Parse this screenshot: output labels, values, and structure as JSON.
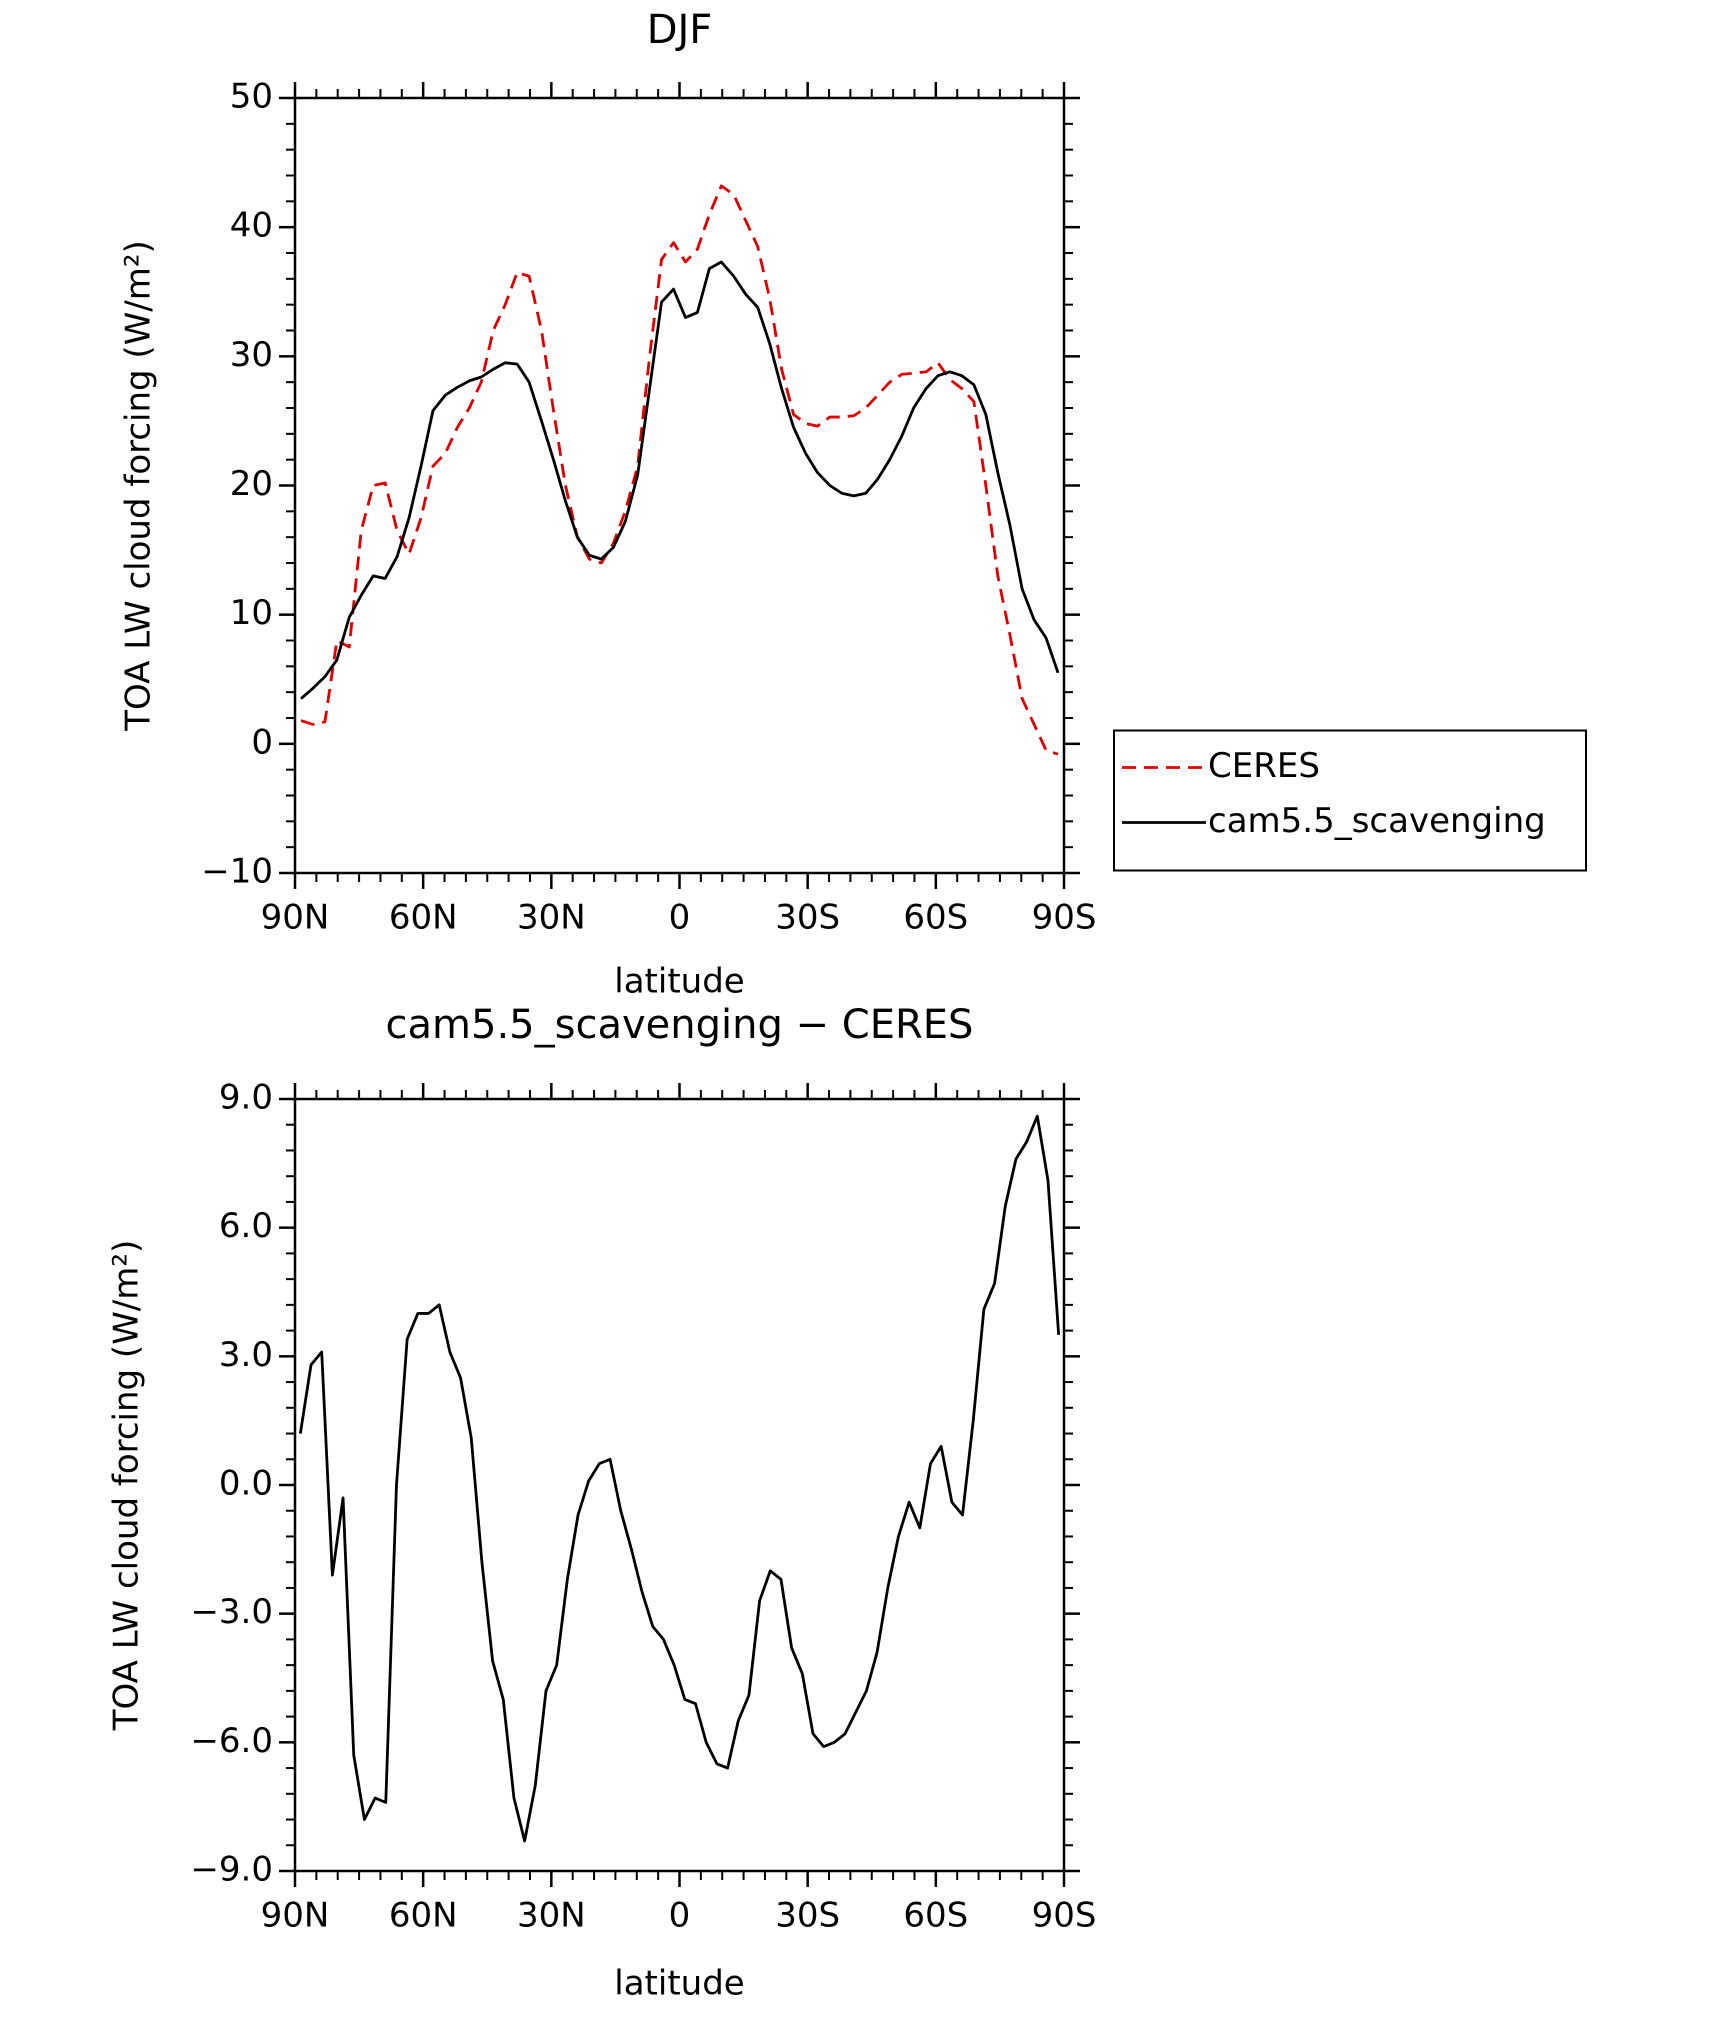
{
  "chart_data": [
    {
      "type": "line",
      "title": "DJF",
      "xlabel": "latitude",
      "ylabel": "TOA LW cloud forcing (W/m²)",
      "x": [
        88.6,
        85.8,
        83.0,
        80.2,
        77.3,
        74.5,
        71.7,
        68.9,
        66.1,
        63.3,
        60.5,
        57.7,
        54.8,
        52.0,
        49.2,
        46.4,
        43.6,
        40.8,
        38.0,
        35.2,
        32.3,
        29.5,
        26.7,
        23.9,
        21.1,
        18.3,
        15.5,
        12.7,
        9.8,
        7.0,
        4.2,
        1.4,
        -1.4,
        -4.2,
        -7.0,
        -9.8,
        -12.7,
        -15.5,
        -18.3,
        -21.1,
        -23.9,
        -26.7,
        -29.5,
        -32.3,
        -35.2,
        -38.0,
        -40.8,
        -43.6,
        -46.4,
        -49.2,
        -52.0,
        -54.8,
        -57.7,
        -60.5,
        -63.3,
        -66.1,
        -68.9,
        -71.7,
        -74.5,
        -77.3,
        -80.2,
        -83.0,
        -85.8,
        -88.6
      ],
      "series": [
        {
          "name": "CERES",
          "color": "#e00000",
          "dashed": true,
          "values": [
            1.8,
            1.5,
            1.7,
            8.0,
            7.5,
            16.5,
            20.0,
            20.2,
            16.5,
            14.7,
            17.5,
            21.5,
            22.5,
            24.5,
            26.0,
            28.0,
            32.0,
            34.0,
            36.5,
            36.2,
            32.0,
            25.8,
            20.0,
            16.0,
            14.3,
            14.0,
            15.5,
            18.0,
            21.5,
            30.0,
            37.5,
            38.8,
            37.3,
            38.3,
            41.0,
            43.2,
            42.5,
            40.5,
            38.5,
            34.5,
            29.0,
            25.5,
            24.8,
            24.6,
            25.3,
            25.3,
            25.4,
            26.0,
            27.0,
            28.0,
            28.6,
            28.7,
            28.8,
            29.5,
            28.2,
            27.5,
            26.5,
            20.0,
            13.0,
            8.5,
            3.5,
            1.5,
            -0.5,
            -0.8
          ]
        },
        {
          "name": "cam5.5_scavenging",
          "color": "#000000",
          "dashed": false,
          "values": [
            3.5,
            4.3,
            5.2,
            6.5,
            9.8,
            11.5,
            13.0,
            12.8,
            14.5,
            17.5,
            21.5,
            25.8,
            27.0,
            27.6,
            28.1,
            28.4,
            29.0,
            29.5,
            29.4,
            28.0,
            25.0,
            22.0,
            18.8,
            16.0,
            14.6,
            14.3,
            15.2,
            17.2,
            20.8,
            27.5,
            34.2,
            35.2,
            33.0,
            33.4,
            36.8,
            37.3,
            36.2,
            34.8,
            33.8,
            31.0,
            27.5,
            24.5,
            22.5,
            21.0,
            20.0,
            19.4,
            19.2,
            19.4,
            20.5,
            22.0,
            23.8,
            26.0,
            27.5,
            28.5,
            28.8,
            28.5,
            27.8,
            25.5,
            21.0,
            17.0,
            12.0,
            9.6,
            8.2,
            5.5
          ]
        }
      ],
      "xlim": [
        90,
        -90
      ],
      "xticks": [
        {
          "value": 90,
          "label": "90N"
        },
        {
          "value": 60,
          "label": "60N"
        },
        {
          "value": 30,
          "label": "30N"
        },
        0,
        {
          "value": -30,
          "label": "30S"
        },
        {
          "value": -60,
          "label": "60S"
        },
        {
          "value": -90,
          "label": "90S"
        }
      ],
      "ylim": [
        -10,
        50
      ],
      "yticks": [
        {
          "value": -10,
          "label": "−10"
        },
        0,
        10,
        20,
        30,
        40,
        50
      ],
      "legend": "right"
    },
    {
      "type": "line",
      "title": "cam5.5_scavenging − CERES",
      "xlabel": "latitude",
      "ylabel": "TOA LW cloud forcing (W/m²)",
      "x": [
        88.75,
        86.25,
        83.75,
        81.25,
        78.75,
        76.25,
        73.75,
        71.25,
        68.75,
        66.25,
        63.75,
        61.25,
        58.75,
        56.25,
        53.75,
        51.25,
        48.75,
        46.25,
        43.75,
        41.25,
        38.75,
        36.25,
        33.75,
        31.25,
        28.75,
        26.25,
        23.75,
        21.25,
        18.75,
        16.25,
        13.75,
        11.25,
        8.75,
        6.25,
        3.75,
        1.25,
        -1.25,
        -3.75,
        -6.25,
        -8.75,
        -11.25,
        -13.75,
        -16.25,
        -18.75,
        -21.25,
        -23.75,
        -26.25,
        -28.75,
        -31.25,
        -33.75,
        -36.25,
        -38.75,
        -41.25,
        -43.75,
        -46.25,
        -48.75,
        -51.25,
        -53.75,
        -56.25,
        -58.75,
        -61.25,
        -63.75,
        -66.25,
        -68.75,
        -71.25,
        -73.75,
        -76.25,
        -78.75,
        -81.25,
        -83.75,
        -86.25,
        -88.75
      ],
      "values": [
        1.2,
        2.8,
        3.1,
        -2.1,
        -0.3,
        -6.3,
        -7.8,
        -7.3,
        -7.4,
        0.0,
        3.4,
        4.0,
        4.0,
        4.2,
        3.1,
        2.5,
        1.1,
        -1.8,
        -4.1,
        -5.0,
        -7.3,
        -8.3,
        -7.0,
        -4.8,
        -4.2,
        -2.2,
        -0.7,
        0.1,
        0.5,
        0.6,
        -0.6,
        -1.5,
        -2.5,
        -3.3,
        -3.6,
        -4.2,
        -5.0,
        -5.1,
        -6.0,
        -6.5,
        -6.6,
        -5.5,
        -4.9,
        -2.7,
        -2.0,
        -2.2,
        -3.8,
        -4.4,
        -5.8,
        -6.1,
        -6.0,
        -5.8,
        -5.3,
        -4.8,
        -3.9,
        -2.4,
        -1.2,
        -0.4,
        -1.0,
        0.5,
        0.9,
        -0.4,
        -0.7,
        1.5,
        4.1,
        4.7,
        6.5,
        7.6,
        8.0,
        8.6,
        7.1,
        3.5
      ],
      "color": "#000000",
      "xlim": [
        90,
        -90
      ],
      "xticks": [
        {
          "value": 90,
          "label": "90N"
        },
        {
          "value": 60,
          "label": "60N"
        },
        {
          "value": 30,
          "label": "30N"
        },
        0,
        {
          "value": -30,
          "label": "30S"
        },
        {
          "value": -60,
          "label": "60S"
        },
        {
          "value": -90,
          "label": "90S"
        }
      ],
      "ylim": [
        -9,
        9
      ],
      "yticks": [
        {
          "value": -9,
          "label": "−9.0"
        },
        {
          "value": -6,
          "label": "−6.0"
        },
        {
          "value": -3,
          "label": "−3.0"
        },
        {
          "value": 0,
          "label": "0.0"
        },
        {
          "value": 3,
          "label": "3.0"
        },
        {
          "value": 6,
          "label": "6.0"
        },
        {
          "value": 9,
          "label": "9.0"
        }
      ]
    }
  ]
}
